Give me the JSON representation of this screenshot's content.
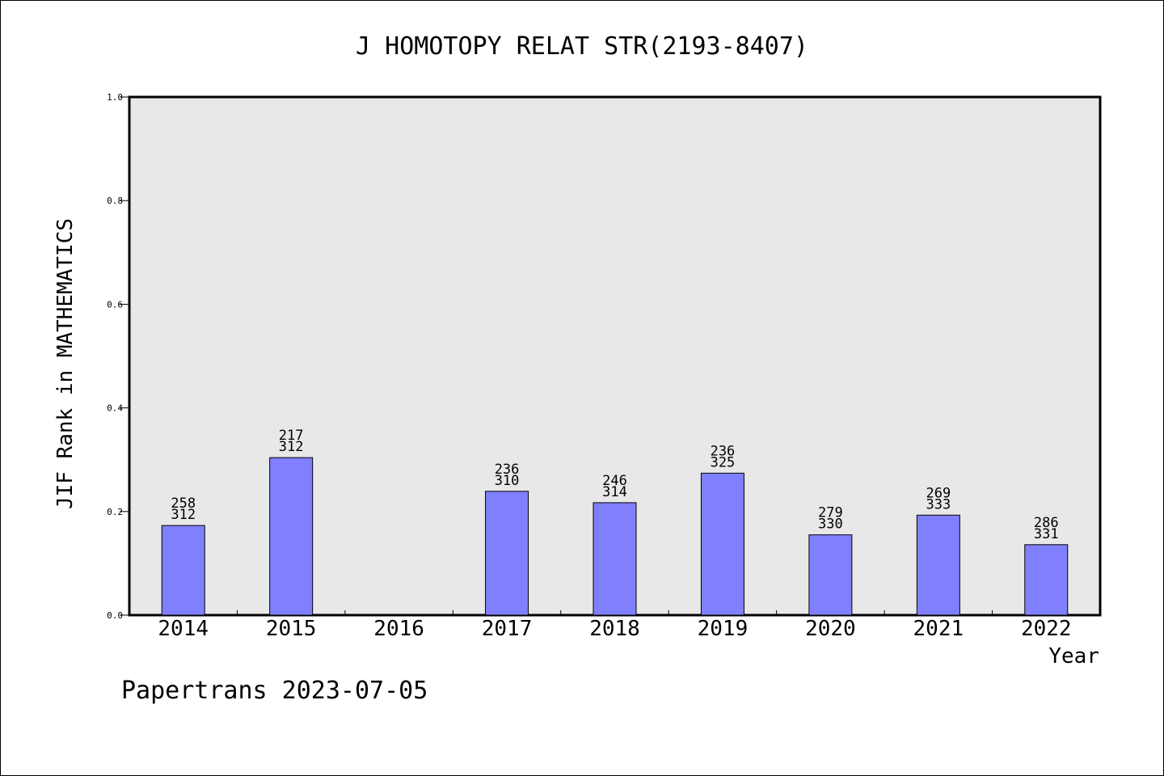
{
  "chart_data": {
    "type": "bar",
    "title": "J HOMOTOPY RELAT STR(2193-8407)",
    "xlabel": "Year",
    "ylabel": "JIF Rank in MATHEMATICS",
    "ylim": [
      0,
      1.0
    ],
    "yticks": [
      "0.0",
      "0.2",
      "0.4",
      "0.6",
      "0.8",
      "1.0"
    ],
    "categories": [
      "2014",
      "2015",
      "2016",
      "2017",
      "2018",
      "2019",
      "2020",
      "2021",
      "2022"
    ],
    "values": [
      0.173,
      0.304,
      null,
      0.239,
      0.217,
      0.274,
      0.155,
      0.193,
      0.136
    ],
    "rank_labels": [
      {
        "rank": "258",
        "total": "312"
      },
      {
        "rank": "217",
        "total": "312"
      },
      null,
      {
        "rank": "236",
        "total": "310"
      },
      {
        "rank": "246",
        "total": "314"
      },
      {
        "rank": "236",
        "total": "325"
      },
      {
        "rank": "279",
        "total": "330"
      },
      {
        "rank": "269",
        "total": "333"
      },
      {
        "rank": "286",
        "total": "331"
      }
    ],
    "bar_color": "#8080ff",
    "plot_background": "#e8e8e8",
    "grid": false,
    "legend": "none"
  },
  "footer": "Papertrans 2023-07-05"
}
